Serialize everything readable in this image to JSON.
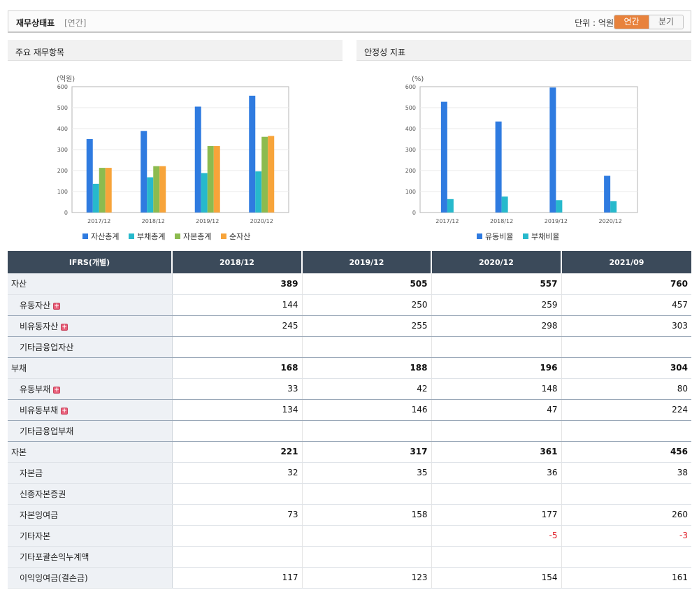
{
  "header": {
    "title": "재무상태표",
    "subtitle": "[연간]",
    "unit": "단위 : 억원",
    "toggle": [
      "연간",
      "분기"
    ]
  },
  "colors": {
    "series1": "#2f7be0",
    "series2": "#27b9cc",
    "series3": "#8cbb4f",
    "series4": "#f7a43a",
    "accent": "#e8823c",
    "table_header": "#3b4a5a",
    "negative": "#e0202a"
  },
  "chart_data": [
    {
      "panel_title": "주요 재무항목",
      "type": "bar",
      "ylabel": "(억원)",
      "ylim": [
        0,
        600
      ],
      "yticks": [
        0,
        100,
        200,
        300,
        400,
        500,
        600
      ],
      "categories": [
        "2017/12",
        "2018/12",
        "2019/12",
        "2020/12"
      ],
      "series": [
        {
          "name": "자산총계",
          "values": [
            350,
            389,
            505,
            557
          ]
        },
        {
          "name": "부채총계",
          "values": [
            137,
            168,
            188,
            196
          ]
        },
        {
          "name": "자본총계",
          "values": [
            213,
            221,
            317,
            361
          ]
        },
        {
          "name": "순자산",
          "values": [
            213,
            221,
            317,
            365
          ]
        }
      ],
      "grid": true,
      "legend": "bottom"
    },
    {
      "panel_title": "안정성 지표",
      "type": "bar",
      "ylabel": "(%)",
      "ylim": [
        0,
        600
      ],
      "yticks": [
        0,
        100,
        200,
        300,
        400,
        500,
        600
      ],
      "categories": [
        "2017/12",
        "2018/12",
        "2019/12",
        "2020/12"
      ],
      "series": [
        {
          "name": "유동비율",
          "values": [
            528,
            434,
            596,
            175
          ]
        },
        {
          "name": "부채비율",
          "values": [
            64,
            76,
            59,
            54
          ]
        }
      ],
      "grid": true,
      "legend": "bottom"
    }
  ],
  "table": {
    "corner": "IFRS(개별)",
    "columns": [
      "2018/12",
      "2019/12",
      "2020/12",
      "2021/09"
    ],
    "rows": [
      {
        "label": "자산",
        "values": [
          "389",
          "505",
          "557",
          "760"
        ],
        "major": true,
        "expand": false,
        "sep": false
      },
      {
        "label": "유동자산",
        "values": [
          "144",
          "250",
          "259",
          "457"
        ],
        "major": false,
        "expand": true,
        "sep": true
      },
      {
        "label": "비유동자산",
        "values": [
          "245",
          "255",
          "298",
          "303"
        ],
        "major": false,
        "expand": true,
        "sep": true
      },
      {
        "label": "기타금융업자산",
        "values": [
          "",
          "",
          "",
          ""
        ],
        "major": false,
        "expand": false,
        "sep": true
      },
      {
        "label": "부채",
        "values": [
          "168",
          "188",
          "196",
          "304"
        ],
        "major": true,
        "expand": false,
        "sep": false
      },
      {
        "label": "유동부채",
        "values": [
          "33",
          "42",
          "148",
          "80"
        ],
        "major": false,
        "expand": true,
        "sep": true
      },
      {
        "label": "비유동부채",
        "values": [
          "134",
          "146",
          "47",
          "224"
        ],
        "major": false,
        "expand": true,
        "sep": true
      },
      {
        "label": "기타금융업부채",
        "values": [
          "",
          "",
          "",
          ""
        ],
        "major": false,
        "expand": false,
        "sep": true
      },
      {
        "label": "자본",
        "values": [
          "221",
          "317",
          "361",
          "456"
        ],
        "major": true,
        "expand": false,
        "sep": false
      },
      {
        "label": "자본금",
        "values": [
          "32",
          "35",
          "36",
          "38"
        ],
        "major": false,
        "expand": false,
        "sep": false
      },
      {
        "label": "신종자본증권",
        "values": [
          "",
          "",
          "",
          ""
        ],
        "major": false,
        "expand": false,
        "sep": false
      },
      {
        "label": "자본잉여금",
        "values": [
          "73",
          "158",
          "177",
          "260"
        ],
        "major": false,
        "expand": false,
        "sep": false
      },
      {
        "label": "기타자본",
        "values": [
          "",
          "",
          "-5",
          "-3"
        ],
        "major": false,
        "expand": false,
        "sep": false
      },
      {
        "label": "기타포괄손익누계액",
        "values": [
          "",
          "",
          "",
          ""
        ],
        "major": false,
        "expand": false,
        "sep": false
      },
      {
        "label": "이익잉여금(결손금)",
        "values": [
          "117",
          "123",
          "154",
          "161"
        ],
        "major": false,
        "expand": false,
        "sep": false
      }
    ]
  }
}
